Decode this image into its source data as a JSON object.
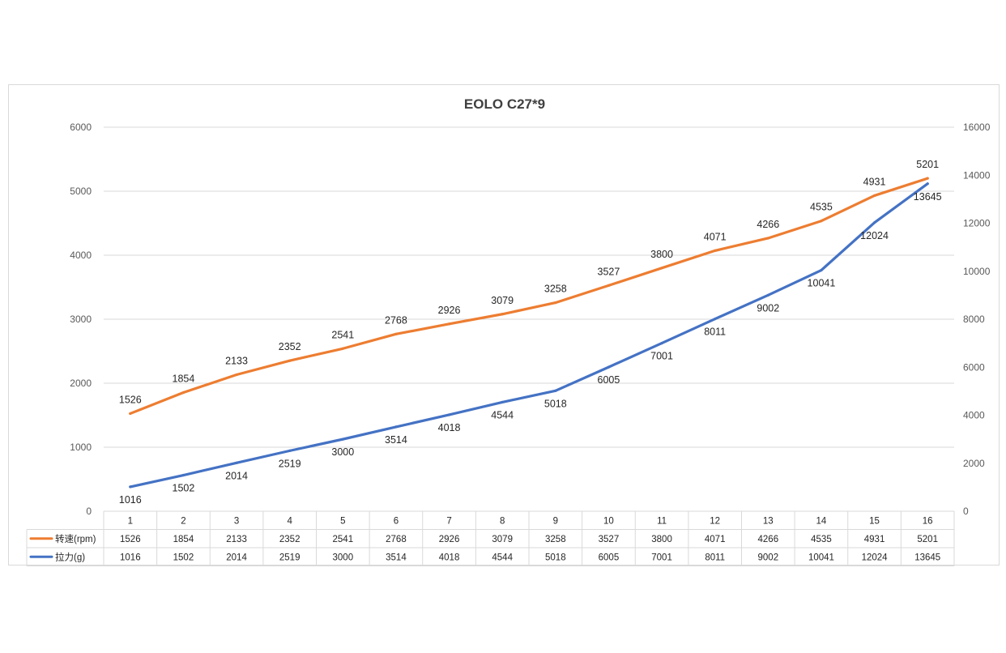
{
  "chart_data": {
    "type": "line",
    "title": "EOLO C27*9",
    "categories": [
      "1",
      "2",
      "3",
      "4",
      "5",
      "6",
      "7",
      "8",
      "9",
      "10",
      "11",
      "12",
      "13",
      "14",
      "15",
      "16"
    ],
    "series": [
      {
        "name": "转速(rpm)",
        "axis": "left",
        "color": "#ed7d31",
        "values": [
          1526,
          1854,
          2133,
          2352,
          2541,
          2768,
          2926,
          3079,
          3258,
          3527,
          3800,
          4071,
          4266,
          4535,
          4931,
          5201
        ]
      },
      {
        "name": "拉力(g)",
        "axis": "right",
        "color": "#4472c4",
        "values": [
          1016,
          1502,
          2014,
          2519,
          3000,
          3514,
          4018,
          4544,
          5018,
          6005,
          7001,
          8011,
          9002,
          10041,
          12024,
          13645
        ]
      }
    ],
    "y_left": {
      "min": 0,
      "max": 6000,
      "step": 1000,
      "ticks": [
        "0",
        "1000",
        "2000",
        "3000",
        "4000",
        "5000",
        "6000"
      ]
    },
    "y_right": {
      "min": 0,
      "max": 16000,
      "step": 2000,
      "ticks": [
        "0",
        "2000",
        "4000",
        "6000",
        "8000",
        "10000",
        "12000",
        "14000",
        "16000"
      ]
    },
    "grid": true,
    "legend": "data-table"
  }
}
